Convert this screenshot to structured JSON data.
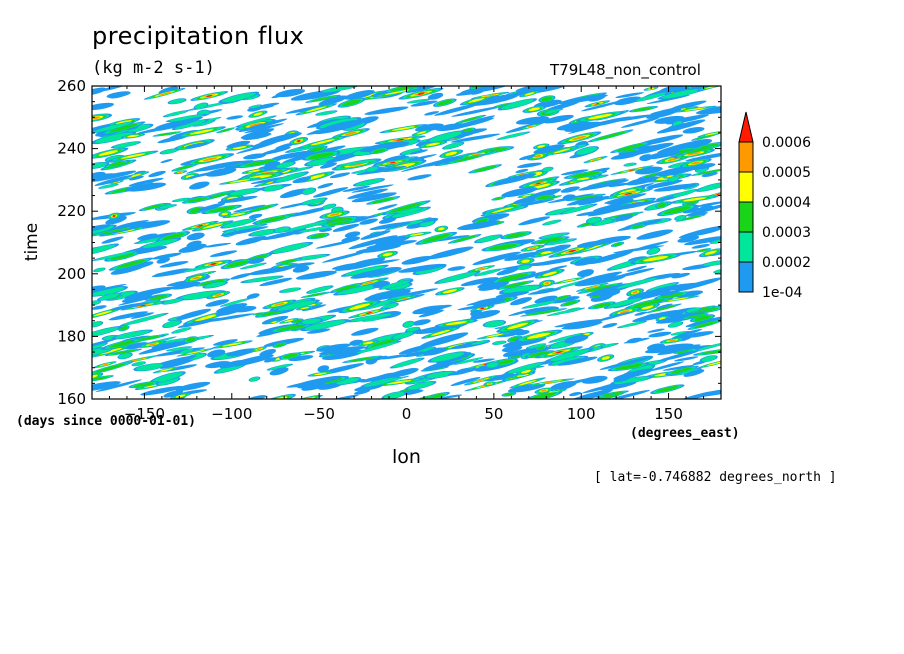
{
  "chart_data": {
    "type": "heatmap",
    "title": "precipitation flux",
    "units": "(kg m-2 s-1)",
    "run_label": "T79L48_non_control",
    "xlabel": "lon",
    "xunits": "(degrees_east)",
    "ylabel": "time",
    "yunits": "(days since 0000-01-01)",
    "note": "[ lat=-0.746882 degrees_north ]",
    "xlim": [
      -180,
      180
    ],
    "ylim": [
      160,
      260
    ],
    "xticks": [
      -150,
      -100,
      -50,
      0,
      50,
      100,
      150
    ],
    "xtick_labels": [
      "−150",
      "−100",
      "−50",
      "0",
      "50",
      "100",
      "150"
    ],
    "yticks": [
      160,
      180,
      200,
      220,
      240,
      260
    ],
    "ytick_labels": [
      "160",
      "180",
      "200",
      "220",
      "240",
      "260"
    ],
    "colorbar": {
      "levels": [
        "1e-04",
        "0.0002",
        "0.0003",
        "0.0004",
        "0.0005",
        "0.0006"
      ],
      "colors": [
        "#1e9bf0",
        "#00e69a",
        "#1ad41a",
        "#ffff00",
        "#ff9900",
        "#ff1a00"
      ],
      "extend": "max"
    },
    "background_color": "#ffffff"
  }
}
